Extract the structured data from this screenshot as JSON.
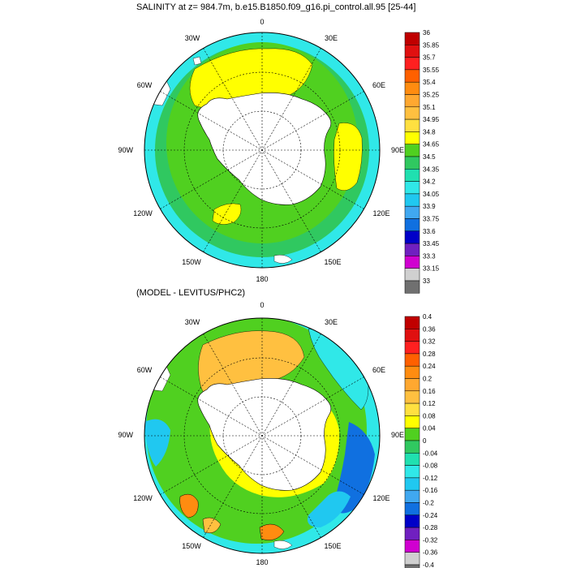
{
  "plots": [
    {
      "title": "SALINITY at z= 984.7m, b.e15.B1850.f09_g16.pi_control.all.95 [25-44]",
      "lon_labels": [
        "0",
        "30E",
        "60E",
        "90E",
        "120E",
        "150E",
        "180",
        "150W",
        "120W",
        "90W",
        "60W",
        "30W"
      ],
      "colorbar_labels": [
        "36",
        "35.85",
        "35.7",
        "35.55",
        "35.4",
        "35.25",
        "35.1",
        "34.95",
        "34.8",
        "34.65",
        "34.5",
        "34.35",
        "34.2",
        "34.05",
        "33.9",
        "33.75",
        "33.6",
        "33.45",
        "33.3",
        "33.15",
        "33"
      ],
      "colorbar_colors": [
        "#c00000",
        "#e01010",
        "#ff2020",
        "#ff6000",
        "#ff8c10",
        "#ffa830",
        "#ffc040",
        "#ffe040",
        "#ffff00",
        "#50d020",
        "#30c860",
        "#20e0b0",
        "#30e8e8",
        "#20c8f0",
        "#40a8f0",
        "#1070e0",
        "#0000c8",
        "#7020c0",
        "#d000d0",
        "#d0d0d0",
        "#707070"
      ]
    },
    {
      "title": "(MODEL - LEVITUS/PHC2)",
      "lon_labels": [
        "0",
        "30E",
        "60E",
        "90E",
        "120E",
        "150E",
        "180",
        "150W",
        "120W",
        "90W",
        "60W",
        "30W"
      ],
      "colorbar_labels": [
        "0.4",
        "0.36",
        "0.32",
        "0.28",
        "0.24",
        "0.2",
        "0.16",
        "0.12",
        "0.08",
        "0.04",
        "0",
        "-0.04",
        "-0.08",
        "-0.12",
        "-0.16",
        "-0.2",
        "-0.24",
        "-0.28",
        "-0.32",
        "-0.36",
        "-0.4"
      ],
      "colorbar_colors": [
        "#c00000",
        "#e01010",
        "#ff2020",
        "#ff6000",
        "#ff8c10",
        "#ffa830",
        "#ffc040",
        "#ffe040",
        "#ffff00",
        "#50d020",
        "#30c860",
        "#20e0b0",
        "#30e8e8",
        "#20c8f0",
        "#40a8f0",
        "#1070e0",
        "#0000c8",
        "#7020c0",
        "#d000d0",
        "#d0d0d0",
        "#707070"
      ]
    }
  ]
}
